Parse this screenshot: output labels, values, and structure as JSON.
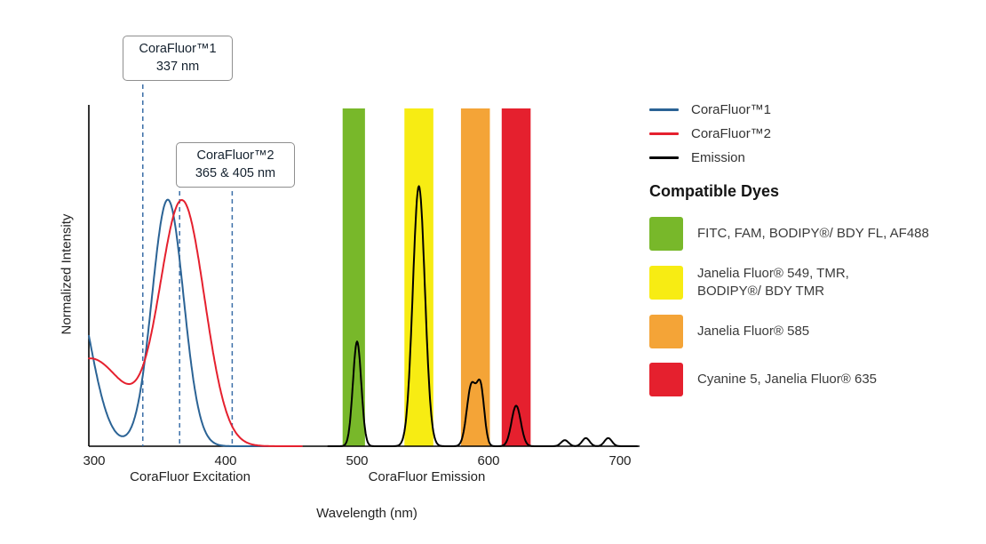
{
  "chart_data": {
    "type": "line",
    "xlabel": "Wavelength (nm)",
    "ylabel": "Normalized Intensity",
    "x_ticks": [
      300,
      400,
      500,
      600,
      700
    ],
    "xlim": [
      300,
      715
    ],
    "ylim": [
      0,
      1
    ],
    "grid": false,
    "guide_lines_nm": [
      337,
      365,
      405
    ],
    "guide_color": "#3a6ea8",
    "axis_group_labels": [
      {
        "label": "CoraFluor Excitation",
        "nm": 373
      },
      {
        "label": "CoraFluor Emission",
        "nm": 553
      }
    ],
    "bands": [
      {
        "name": "green-band",
        "color": "#78b82a",
        "from": 489,
        "to": 506
      },
      {
        "name": "yellow-band",
        "color": "#f7ec13",
        "from": 536,
        "to": 558
      },
      {
        "name": "orange-band",
        "color": "#f4a437",
        "from": 579,
        "to": 601
      },
      {
        "name": "red-band",
        "color": "#e5202e",
        "from": 610,
        "to": 632
      }
    ],
    "series": [
      {
        "name": "CoraFluor™1",
        "color": "#2b6395",
        "range": [
          296,
          432
        ],
        "components": [
          {
            "center": 356,
            "sigma": 17,
            "amp": 0.73
          },
          {
            "center": 281,
            "sigma": 22,
            "amp": 0.52
          }
        ]
      },
      {
        "name": "CoraFluor™2",
        "color": "#e5202e",
        "range": [
          296,
          458
        ],
        "components": [
          {
            "center": 367,
            "sigma": 24,
            "amp": 0.72
          },
          {
            "center": 297,
            "sigma": 38,
            "amp": 0.26
          }
        ]
      },
      {
        "name": "Emission",
        "color": "#000000",
        "range": [
          478,
          713
        ],
        "components": [
          {
            "center": 500,
            "sigma": 4.5,
            "amp": 0.31
          },
          {
            "center": 547,
            "sigma": 6.5,
            "amp": 0.77
          },
          {
            "center": 587,
            "sigma": 5,
            "amp": 0.18
          },
          {
            "center": 594,
            "sigma": 4,
            "amp": 0.165
          },
          {
            "center": 621,
            "sigma": 5,
            "amp": 0.12
          },
          {
            "center": 658,
            "sigma": 4,
            "amp": 0.018
          },
          {
            "center": 674,
            "sigma": 4,
            "amp": 0.024
          },
          {
            "center": 691,
            "sigma": 4,
            "amp": 0.024
          }
        ]
      }
    ]
  },
  "annotations": [
    {
      "label": "CoraFluor™1",
      "sublabel": "337 nm"
    },
    {
      "label": "CoraFluor™2",
      "sublabel": "365 & 405 nm"
    }
  ],
  "legend": {
    "items": [
      {
        "label": "CoraFluor™1",
        "color": "#2b6395"
      },
      {
        "label": "CoraFluor™2",
        "color": "#e5202e"
      },
      {
        "label": "Emission",
        "color": "#000000"
      }
    ]
  },
  "compatible_dyes": {
    "title": "Compatible Dyes",
    "items": [
      {
        "color": "#78b82a",
        "lines": [
          "FITC, FAM, BODIPY®/ BDY FL, AF488",
          ""
        ]
      },
      {
        "color": "#f7ec13",
        "lines": [
          "Janelia Fluor® 549, TMR,",
          "BODIPY®/ BDY TMR"
        ]
      },
      {
        "color": "#f4a437",
        "lines": [
          "Janelia Fluor® 585",
          ""
        ]
      },
      {
        "color": "#e5202e",
        "lines": [
          "Cyanine 5, Janelia Fluor® 635",
          ""
        ]
      }
    ]
  }
}
